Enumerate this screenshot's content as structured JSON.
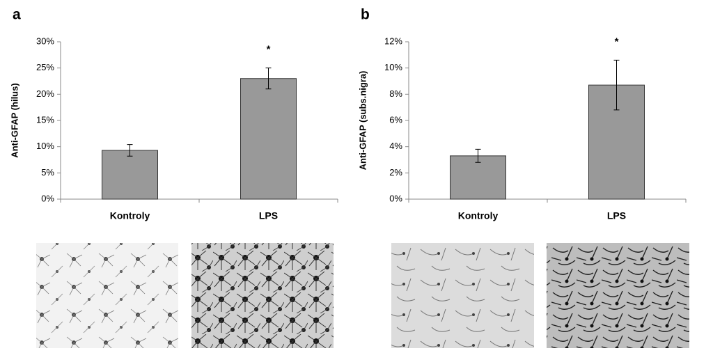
{
  "chart_data": [
    {
      "type": "bar",
      "panel": "a",
      "ylabel": "Anti-GFAP (hilus)",
      "categories": [
        "Kontroly",
        "LPS"
      ],
      "values": [
        9.3,
        23.0
      ],
      "errors": [
        1.1,
        2.0
      ],
      "significance": [
        null,
        "*"
      ],
      "color": "#999999",
      "ylim": [
        0,
        30
      ],
      "yticks": [
        {
          "value": 0,
          "label": "0%"
        },
        {
          "value": 5,
          "label": "5%"
        },
        {
          "value": 10,
          "label": "10%"
        },
        {
          "value": 15,
          "label": "15%"
        },
        {
          "value": 20,
          "label": "20%"
        },
        {
          "value": 25,
          "label": "25%"
        },
        {
          "value": 30,
          "label": "30%"
        }
      ]
    },
    {
      "type": "bar",
      "panel": "b",
      "ylabel": "Anti-GFAP (subs.nigra)",
      "categories": [
        "Kontroly",
        "LPS"
      ],
      "values": [
        3.3,
        8.7
      ],
      "errors": [
        0.5,
        1.9
      ],
      "significance": [
        null,
        "*"
      ],
      "color": "#999999",
      "ylim": [
        0,
        12
      ],
      "yticks": [
        {
          "value": 0,
          "label": "0%"
        },
        {
          "value": 2,
          "label": "2%"
        },
        {
          "value": 4,
          "label": "4%"
        },
        {
          "value": 6,
          "label": "6%"
        },
        {
          "value": 8,
          "label": "8%"
        },
        {
          "value": 10,
          "label": "10%"
        },
        {
          "value": 12,
          "label": "12%"
        }
      ]
    }
  ]
}
